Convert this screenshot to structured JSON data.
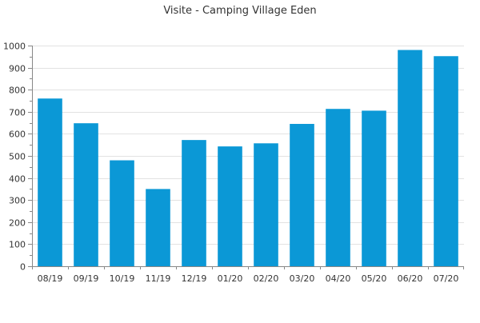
{
  "chart_data": {
    "type": "bar",
    "title": "Visite - Camping Village Eden",
    "xlabel": "",
    "ylabel": "",
    "categories": [
      "08/19",
      "09/19",
      "10/19",
      "11/19",
      "12/19",
      "01/20",
      "02/20",
      "03/20",
      "04/20",
      "05/20",
      "06/20",
      "07/20"
    ],
    "values": [
      760,
      648,
      480,
      350,
      572,
      543,
      557,
      645,
      713,
      705,
      980,
      952
    ],
    "ylim": [
      0,
      1000
    ],
    "yticks": [
      0,
      100,
      200,
      300,
      400,
      500,
      600,
      700,
      800,
      900,
      1000
    ],
    "grid": true,
    "legend": "none",
    "colors": {
      "bar": "#0b98d6",
      "grid": "#e2e2e2",
      "axis": "#888888",
      "text": "#333333"
    }
  }
}
